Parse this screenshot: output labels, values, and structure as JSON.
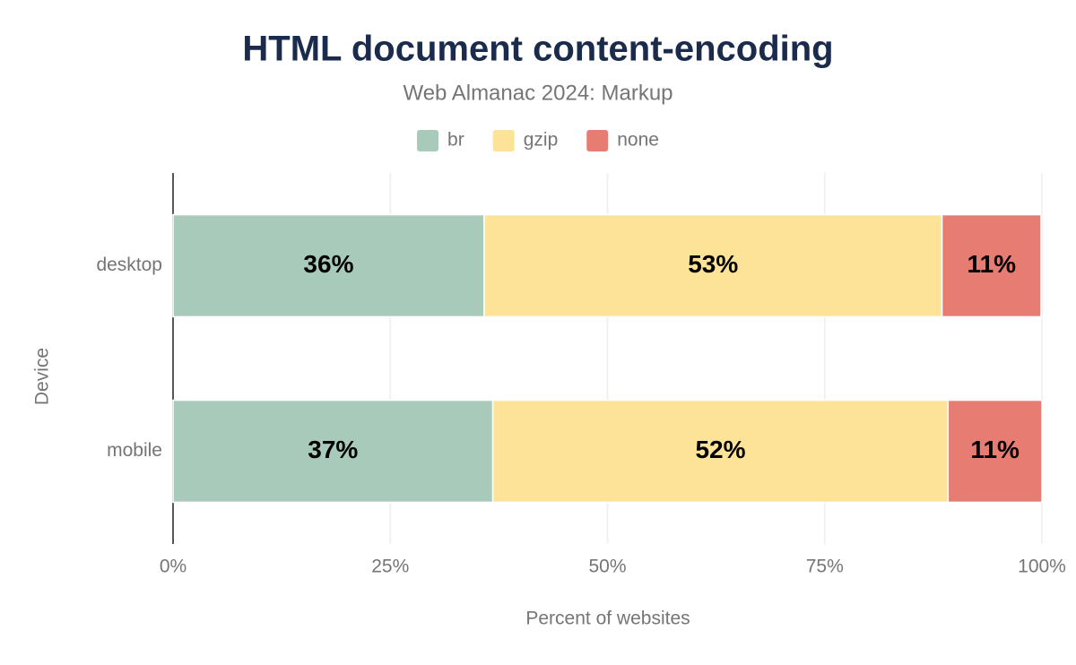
{
  "chart_data": {
    "type": "stacked-bar-horizontal",
    "title": "HTML document content-encoding",
    "subtitle": "Web Almanac 2024: Markup",
    "x_label": "Percent of websites",
    "y_label": "Device",
    "categories": [
      "desktop",
      "mobile"
    ],
    "series": [
      {
        "name": "br",
        "color": "#a8cabb",
        "values": [
          35.8,
          36.8
        ],
        "value_labels": [
          "36%",
          "37%"
        ]
      },
      {
        "name": "gzip",
        "color": "#fde398",
        "values": [
          52.7,
          52.4
        ],
        "value_labels": [
          "53%",
          "52%"
        ]
      },
      {
        "name": "none",
        "color": "#e77c73",
        "values": [
          11.4,
          10.8
        ],
        "value_labels": [
          "11%",
          "11%"
        ]
      }
    ],
    "xlim": [
      0,
      100
    ],
    "xticks": [
      {
        "value": 0,
        "label": "0%"
      },
      {
        "value": 25,
        "label": "25%"
      },
      {
        "value": 50,
        "label": "50%"
      },
      {
        "value": 75,
        "label": "75%"
      },
      {
        "value": 100,
        "label": "100%"
      }
    ],
    "grid": true
  }
}
